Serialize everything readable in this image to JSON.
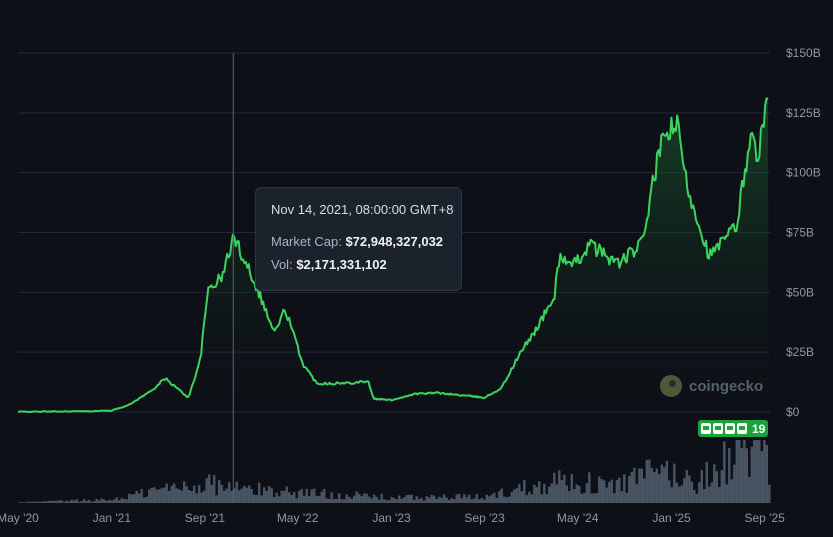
{
  "chart_data": {
    "type": "area",
    "y_axis_ticks": [
      "$150B",
      "$125B",
      "$100B",
      "$75B",
      "$50B",
      "$25B",
      "$0"
    ],
    "y_axis_values": [
      150,
      125,
      100,
      75,
      50,
      25,
      0
    ],
    "x_axis_ticks": [
      "May '20",
      "Jan '21",
      "Sep '21",
      "May '22",
      "Jan '23",
      "Sep '23",
      "May '24",
      "Jan '25",
      "Sep '25"
    ],
    "x_axis_dates": [
      "2020-05-01",
      "2021-01-01",
      "2021-09-01",
      "2022-05-01",
      "2023-01-01",
      "2023-09-01",
      "2024-05-01",
      "2025-01-01",
      "2025-09-01"
    ],
    "ylim": [
      0,
      150
    ],
    "xlim": [
      "2020-05-01",
      "2025-09-15"
    ],
    "grid": true,
    "series": [
      {
        "color": "#3cd35e",
        "x": [
          "2020-05-01",
          "2020-08-01",
          "2020-11-01",
          "2021-01-01",
          "2021-02-15",
          "2021-04-15",
          "2021-05-20",
          "2021-07-20",
          "2021-08-20",
          "2021-09-10",
          "2021-10-15",
          "2021-11-14",
          "2021-12-20",
          "2022-01-20",
          "2022-03-01",
          "2022-03-30",
          "2022-05-15",
          "2022-06-20",
          "2022-09-01",
          "2022-11-01",
          "2022-11-15",
          "2023-01-01",
          "2023-03-01",
          "2023-05-01",
          "2023-07-01",
          "2023-09-01",
          "2023-10-15",
          "2023-12-01",
          "2024-01-15",
          "2024-03-01",
          "2024-03-15",
          "2024-04-15",
          "2024-06-01",
          "2024-08-15",
          "2024-10-15",
          "2024-11-25",
          "2024-12-15",
          "2025-01-15",
          "2025-02-10",
          "2025-03-15",
          "2025-04-10",
          "2025-05-20",
          "2025-06-20",
          "2025-07-25",
          "2025-08-15",
          "2025-09-10"
        ],
        "y": [
          0.1,
          0.2,
          0.3,
          0.6,
          3,
          9,
          14,
          6,
          22,
          52,
          56,
          72.9,
          62,
          50,
          33,
          43,
          20,
          12,
          12,
          13,
          5.5,
          5,
          7.5,
          8,
          7,
          6,
          10,
          24,
          35,
          48,
          66,
          60,
          70,
          62,
          70,
          105,
          116,
          120,
          95,
          78,
          65,
          72,
          78,
          115,
          108,
          130
        ]
      }
    ],
    "volume_series": {
      "color": "#4a5564",
      "x": [
        "2020-05-01",
        "2021-01-01",
        "2021-05-01",
        "2021-09-01",
        "2021-11-14",
        "2022-05-01",
        "2023-01-01",
        "2023-09-01",
        "2024-03-01",
        "2024-08-01",
        "2024-12-01",
        "2025-03-01",
        "2025-08-01",
        "2025-09-10"
      ],
      "y": [
        0.1,
        0.5,
        2,
        3,
        2.2,
        1.6,
        0.8,
        0.9,
        3.5,
        2.5,
        5,
        3,
        9,
        5
      ]
    },
    "tooltip": {
      "date": "Nov 14, 2021, 08:00:00 GMT+8",
      "market_cap_label": "Market Cap:",
      "market_cap_value": "$72,948,327,032",
      "volume_label": "Vol:",
      "volume_value": "$2,171,331,102"
    },
    "hover_date": "2021-11-14",
    "watermark": "coingecko",
    "event_badge_count": "19",
    "colors": {
      "background": "#0d1117",
      "line": "#3cd35e",
      "grid": "#222a34",
      "tooltip_bg": "#1c222c",
      "badge": "#1aa33a"
    }
  }
}
